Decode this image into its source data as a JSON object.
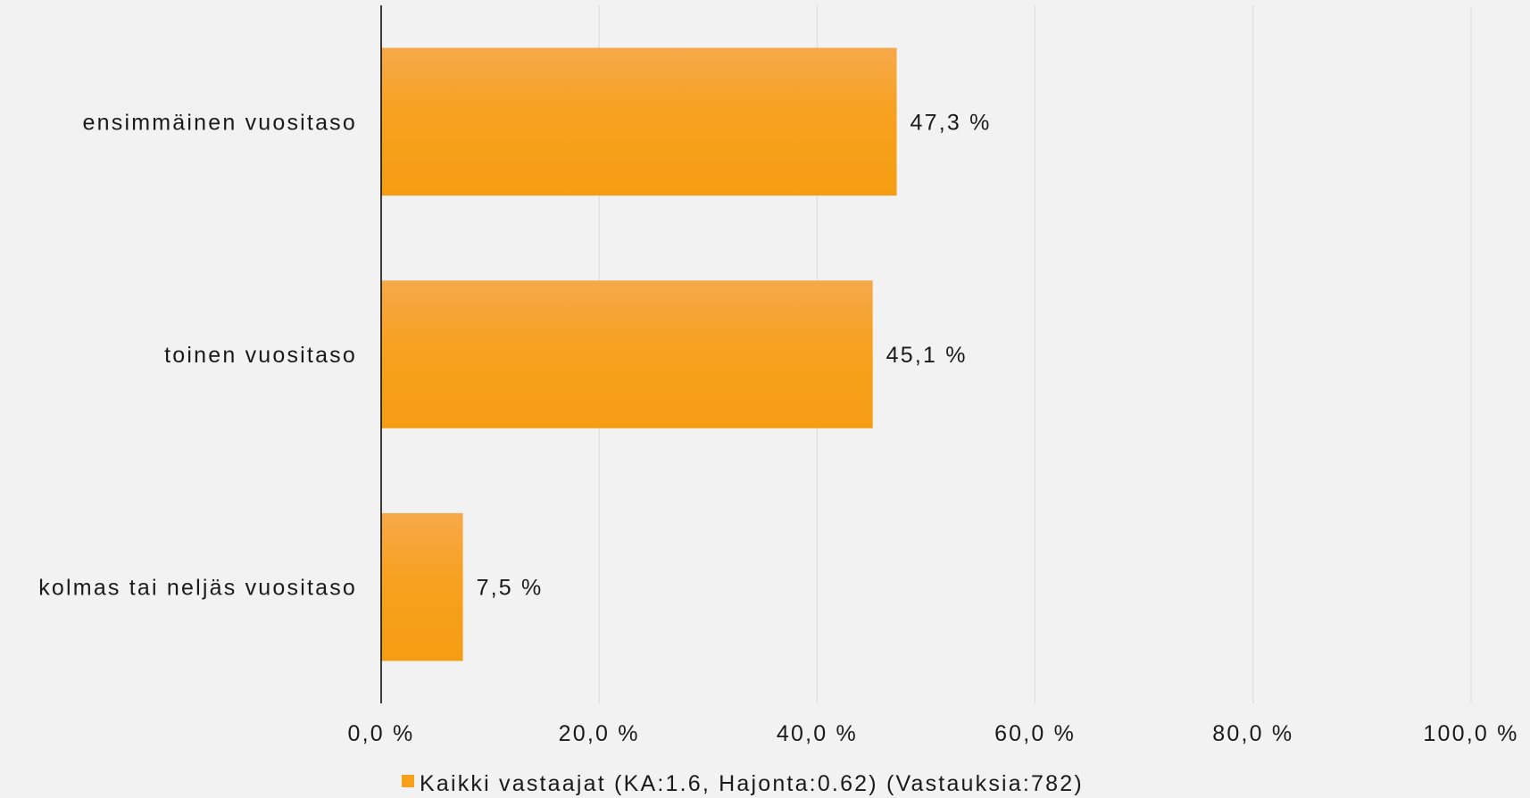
{
  "chart_data": {
    "type": "bar",
    "orientation": "horizontal",
    "categories": [
      "ensimmäinen vuositaso",
      "toinen vuositaso",
      "kolmas tai neljäs vuositaso"
    ],
    "series": [
      {
        "name": "Kaikki vastaajat (KA:1.6, Hajonta:0.62) (Vastauksia:782)",
        "values": [
          47.3,
          45.1,
          7.5
        ],
        "data_labels": [
          "47,3 %",
          "45,1 %",
          "7,5 %"
        ],
        "color": "#f7a11a"
      }
    ],
    "xlim": [
      0,
      100
    ],
    "x_ticks": [
      0,
      20,
      40,
      60,
      80,
      100
    ],
    "x_tick_labels": [
      "0,0 %",
      "20,0 %",
      "40,0 %",
      "60,0 %",
      "80,0 %",
      "100,0 %"
    ],
    "grid": "vertical",
    "legend_position": "bottom",
    "title": "",
    "xlabel": "",
    "ylabel": ""
  },
  "colors": {
    "background": "#f2f2f2",
    "bar_top": "#f6a94a",
    "bar_bottom": "#f59d12",
    "grid": "#d9d9d9",
    "axis": "#000000",
    "legend_marker": "#f7a11a"
  }
}
